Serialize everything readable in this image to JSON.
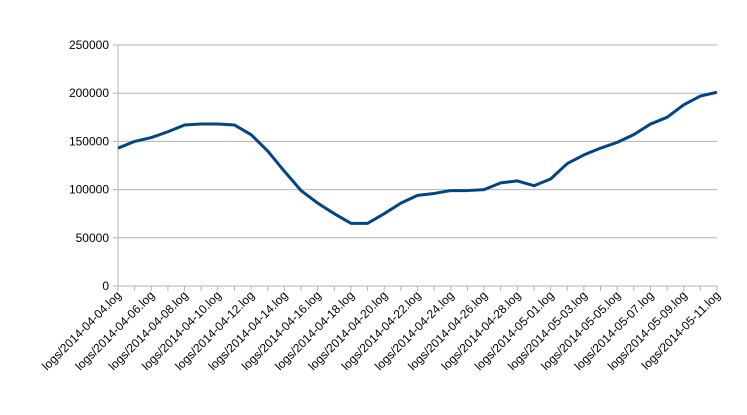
{
  "chart_data": {
    "type": "line",
    "categories": [
      "logs/2014-04-04.log",
      null,
      "logs/2014-04-06.log",
      null,
      "logs/2014-04-08.log",
      null,
      "logs/2014-04-10.log",
      null,
      "logs/2014-04-12.log",
      null,
      "logs/2014-04-14.log",
      null,
      "logs/2014-04-16.log",
      null,
      "logs/2014-04-18.log",
      null,
      "logs/2014-04-20.log",
      null,
      "logs/2014-04-22.log",
      null,
      "logs/2014-04-24.log",
      null,
      "logs/2014-04-26.log",
      null,
      "logs/2014-04-28.log",
      null,
      "logs/2014-05-01.log",
      null,
      "logs/2014-05-03.log",
      null,
      "logs/2014-05-05.log",
      null,
      "logs/2014-05-07.log",
      null,
      "logs/2014-05-09.log",
      null,
      "logs/2014-05-11.log"
    ],
    "series": [
      {
        "color": "#004586",
        "values": [
          143000,
          150000,
          154000,
          160000,
          167000,
          168000,
          168000,
          167000,
          157000,
          140000,
          119000,
          99000,
          86000,
          75000,
          65000,
          65000,
          75000,
          86000,
          94000,
          96000,
          99000,
          99000,
          100000,
          107000,
          109000,
          104000,
          111000,
          127000,
          136000,
          143000,
          149000,
          157000,
          168000,
          175000,
          188000,
          197000,
          201000
        ]
      }
    ],
    "ylim": [
      0,
      250000
    ],
    "yticks": [
      0,
      50000,
      100000,
      150000,
      200000,
      250000
    ],
    "grid": true
  }
}
